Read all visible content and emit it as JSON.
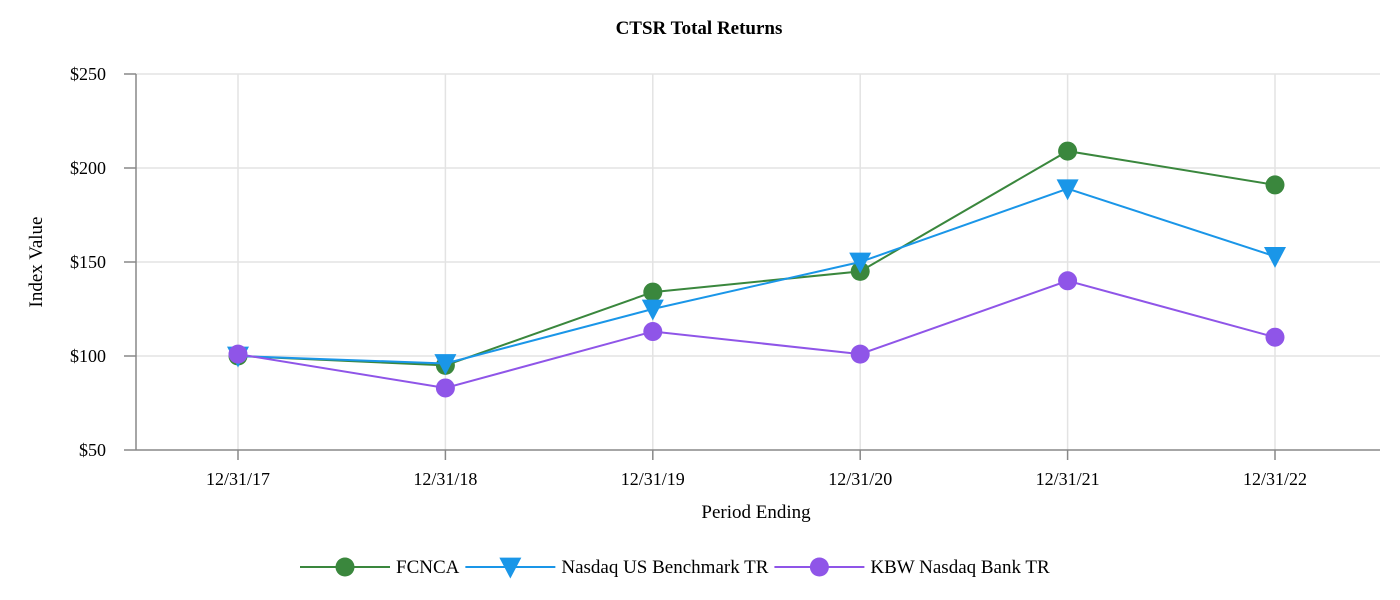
{
  "chart_data": {
    "type": "line",
    "title": "CTSR Total Returns",
    "xlabel": "Period Ending",
    "ylabel": "Index Value",
    "categories": [
      "12/31/17",
      "12/31/18",
      "12/31/19",
      "12/31/20",
      "12/31/21",
      "12/31/22"
    ],
    "ylim": [
      50,
      250
    ],
    "yticks": [
      50,
      100,
      150,
      200,
      250
    ],
    "ytick_labels": [
      "$50",
      "$100",
      "$150",
      "$200",
      "$250"
    ],
    "grid": true,
    "legend_position": "bottom-center",
    "series": [
      {
        "name": "FCNCA",
        "color": "#3a873d",
        "marker": "circle",
        "values": [
          100,
          95,
          134,
          145,
          209,
          191
        ]
      },
      {
        "name": "Nasdaq US Benchmark TR",
        "color": "#1a96e8",
        "marker": "triangle-down",
        "values": [
          100,
          96,
          125,
          150,
          189,
          153
        ]
      },
      {
        "name": "KBW Nasdaq Bank TR",
        "color": "#8f55e8",
        "marker": "circle",
        "values": [
          101,
          83,
          113,
          101,
          140,
          110
        ]
      }
    ]
  }
}
